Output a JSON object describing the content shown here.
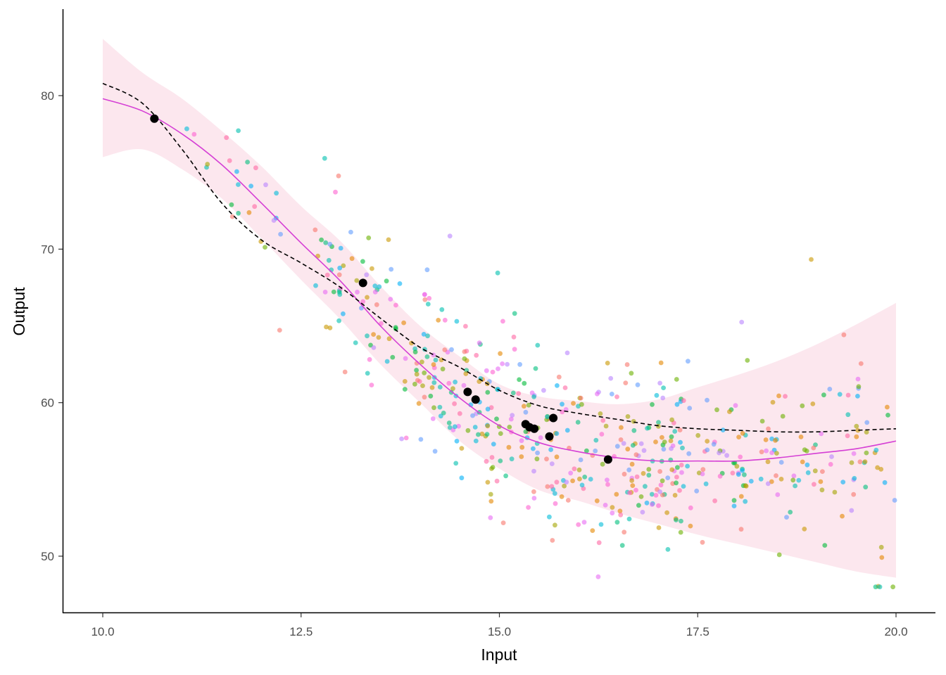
{
  "chart_data": {
    "type": "scatter",
    "xlabel": "Input",
    "ylabel": "Output",
    "xlim": [
      10,
      20
    ],
    "ylim": [
      46.5,
      85.5
    ],
    "x_ticks": [
      10,
      12.5,
      15,
      17.5,
      20
    ],
    "x_tick_labels": [
      "10.0",
      "12.5",
      "15.0",
      "17.5",
      "20.0"
    ],
    "y_ticks": [
      50,
      60,
      70,
      80
    ],
    "y_tick_labels": [
      "50",
      "60",
      "70",
      "80"
    ],
    "grid": false,
    "legend": "none",
    "background_points": {
      "description_count": 600,
      "alpha": 0.6,
      "palette": [
        "#F8766D",
        "#E58700",
        "#C99800",
        "#A3A500",
        "#6BB100",
        "#00BA38",
        "#00BF7D",
        "#00C0AF",
        "#00BCD8",
        "#00B0F6",
        "#619CFF",
        "#B983FF",
        "#E76BF3",
        "#FD61D1",
        "#FF67A4"
      ]
    },
    "highlighted_points": {
      "color": "#000000",
      "x": [
        10.65,
        13.28,
        14.6,
        14.7,
        15.33,
        15.38,
        15.44,
        15.63,
        15.68,
        16.37
      ],
      "y": [
        78.5,
        67.8,
        60.7,
        60.2,
        58.6,
        58.4,
        58.3,
        57.8,
        59.0,
        56.3
      ]
    },
    "series": [
      {
        "style": "solid",
        "color": "#D53FD5",
        "x": [
          10.0,
          10.5,
          11.0,
          11.5,
          12.0,
          12.5,
          13.0,
          13.5,
          14.0,
          14.5,
          15.0,
          15.5,
          16.0,
          16.5,
          17.0,
          17.5,
          18.0,
          18.5,
          19.0,
          19.5,
          20.0
        ],
        "y": [
          79.8,
          79.0,
          77.5,
          75.5,
          73.0,
          70.4,
          67.9,
          65.0,
          62.5,
          60.3,
          58.5,
          57.4,
          56.8,
          56.4,
          56.2,
          56.2,
          56.2,
          56.4,
          56.7,
          57.0,
          57.5
        ],
        "ci_lower": [
          76.0,
          76.5,
          75.2,
          73.3,
          70.7,
          68.0,
          65.4,
          62.5,
          60.0,
          57.5,
          55.7,
          54.3,
          53.6,
          52.8,
          52.1,
          51.4,
          50.8,
          50.2,
          49.6,
          49.0,
          48.6
        ],
        "ci_upper": [
          83.7,
          81.5,
          79.8,
          77.7,
          75.4,
          72.8,
          70.5,
          67.6,
          65.0,
          63.0,
          61.2,
          60.4,
          60.1,
          59.9,
          60.2,
          61.0,
          61.8,
          62.7,
          63.8,
          65.1,
          66.5
        ],
        "ci_color": "#FCE4EC"
      },
      {
        "style": "dashed",
        "color": "#000000",
        "x": [
          10.0,
          10.5,
          11.0,
          11.5,
          12.0,
          12.5,
          13.0,
          13.5,
          14.0,
          14.5,
          15.0,
          15.5,
          16.0,
          16.5,
          17.0,
          17.5,
          18.0,
          18.5,
          19.0,
          19.5,
          20.0
        ],
        "y": [
          80.8,
          79.5,
          76.5,
          73.0,
          70.6,
          69.1,
          67.5,
          65.5,
          63.6,
          62.3,
          60.8,
          59.8,
          59.3,
          58.9,
          58.5,
          58.3,
          58.2,
          58.1,
          58.1,
          58.2,
          58.3
        ]
      }
    ]
  }
}
